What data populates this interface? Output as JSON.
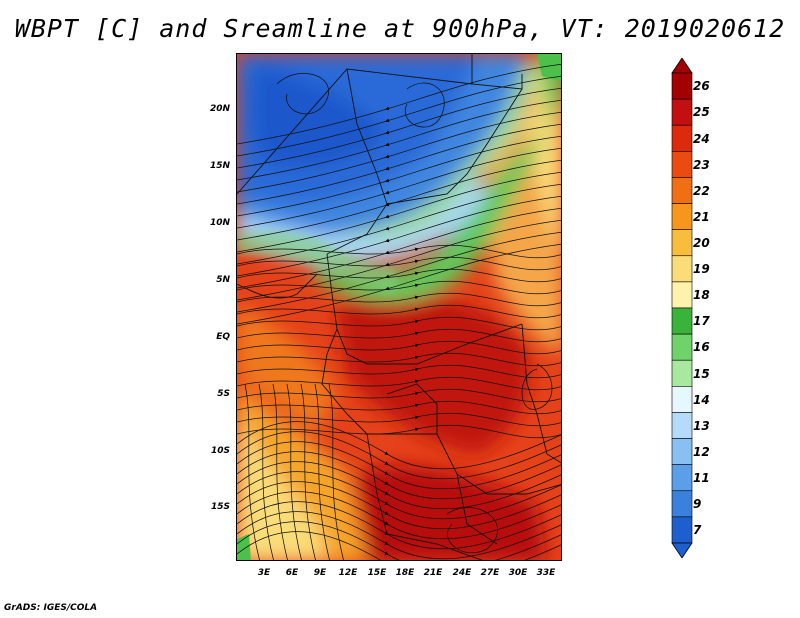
{
  "title": "WBPT [C] and Sreamline at 900hPa, VT: 2019020612",
  "credit": "GrADS: IGES/COLA",
  "map": {
    "lat_ticks": [
      "20N",
      "15N",
      "10N",
      "5N",
      "EQ",
      "5S",
      "10S",
      "15S"
    ],
    "lon_ticks": [
      "3E",
      "6E",
      "9E",
      "12E",
      "15E",
      "18E",
      "21E",
      "24E",
      "27E",
      "30E",
      "33E"
    ]
  },
  "colorbar": {
    "labels": [
      "26",
      "25",
      "24",
      "23",
      "22",
      "21",
      "20",
      "19",
      "18",
      "17",
      "16",
      "15",
      "14",
      "13",
      "12",
      "11",
      "9",
      "7"
    ],
    "colors": [
      "#a50000",
      "#c20f0f",
      "#dc2a0c",
      "#e94b10",
      "#f06e14",
      "#f6961d",
      "#f8bd3c",
      "#fadc79",
      "#fff2ac",
      "#39b33a",
      "#6fd36a",
      "#a8e89f",
      "#e6f7ff",
      "#b4dcfa",
      "#88c0f2",
      "#5b9fe8",
      "#3a80dd",
      "#1d5fcf"
    ]
  }
}
